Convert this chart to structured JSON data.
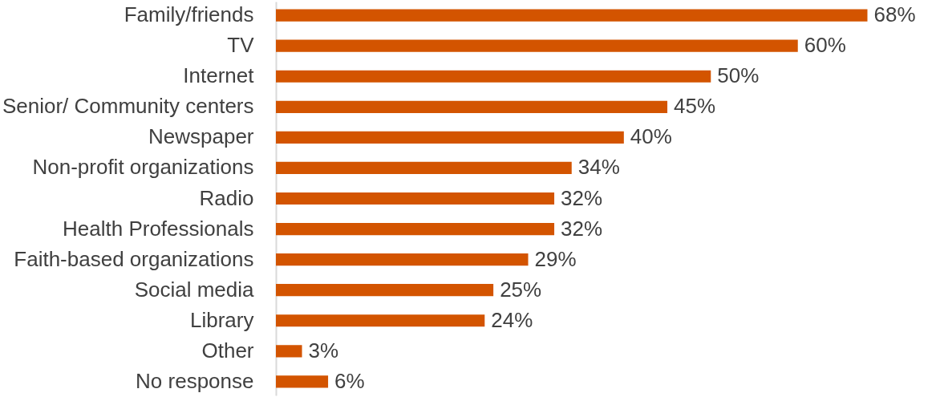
{
  "chart_data": {
    "type": "bar",
    "orientation": "horizontal",
    "categories": [
      "Family/friends",
      "TV",
      "Internet",
      "Senior/ Community centers",
      "Newspaper",
      "Non-profit organizations",
      "Radio",
      "Health Professionals",
      "Faith-based organizations",
      "Social media",
      "Library",
      "Other",
      "No response"
    ],
    "values": [
      68,
      60,
      50,
      45,
      40,
      34,
      32,
      32,
      29,
      25,
      24,
      3,
      6
    ],
    "value_labels": [
      "68%",
      "60%",
      "50%",
      "45%",
      "40%",
      "34%",
      "32%",
      "32%",
      "29%",
      "25%",
      "24%",
      "3%",
      "6%"
    ],
    "color": "#d35400"
  }
}
